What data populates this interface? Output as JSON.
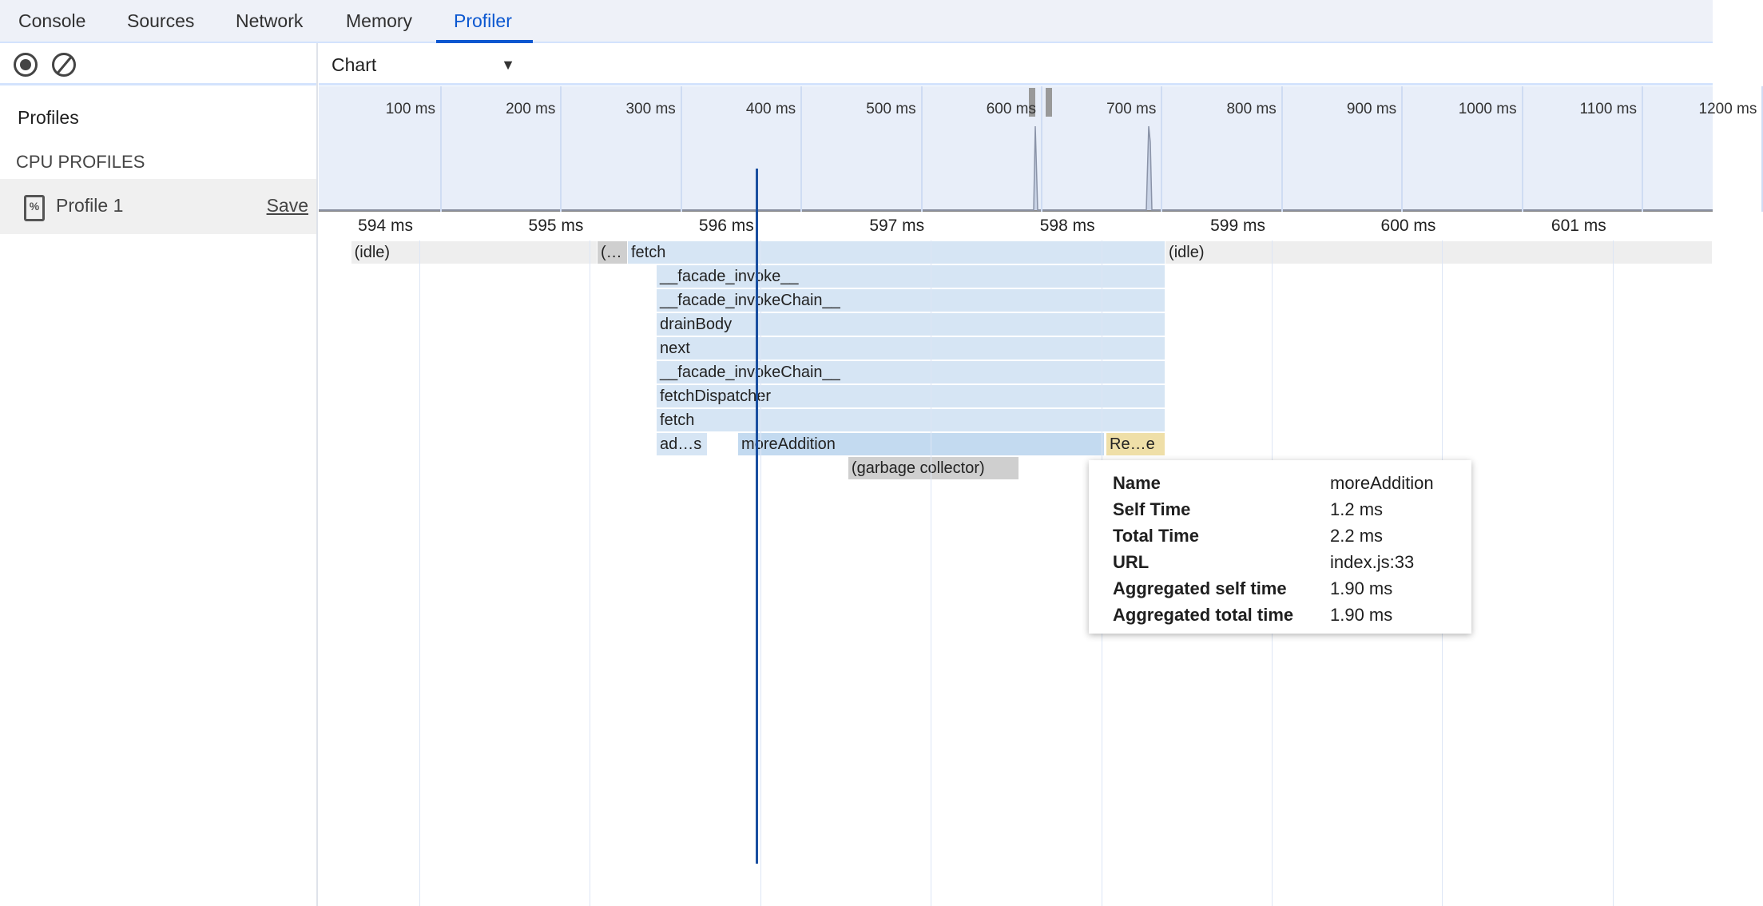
{
  "tabs": [
    {
      "label": "Console"
    },
    {
      "label": "Sources"
    },
    {
      "label": "Network"
    },
    {
      "label": "Memory"
    },
    {
      "label": "Profiler",
      "active": true
    }
  ],
  "sidebar": {
    "profiles_heading": "Profiles",
    "section": "CPU PROFILES",
    "profile": {
      "name": "Profile 1",
      "save_label": "Save",
      "icon": "cpu-profile-file-icon"
    }
  },
  "toolbar": {
    "record_icon": "record-icon",
    "clear_icon": "clear-icon",
    "view": "Chart"
  },
  "overview": {
    "ticks": [
      "100 ms",
      "200 ms",
      "300 ms",
      "400 ms",
      "500 ms",
      "600 ms",
      "700 ms",
      "800 ms",
      "900 ms",
      "1000 ms",
      "1100 ms",
      "1200 ms"
    ]
  },
  "ruler": {
    "ticks": [
      "594 ms",
      "595 ms",
      "596 ms",
      "597 ms",
      "598 ms",
      "599 ms",
      "600 ms",
      "601 ms"
    ]
  },
  "colors": {
    "js": "#d6e5f4",
    "selected": "#c3daf0",
    "gray": "#cfcfcf",
    "idle": "#eeeeee",
    "native": "#efdfa8",
    "cursor": "#1a4fa0",
    "accent": "#0b57d0"
  },
  "flame": [
    {
      "name": "(idle)",
      "row": 0,
      "start": 593.6,
      "end": 595.045,
      "kind": "idle"
    },
    {
      "name": "(…",
      "row": 0,
      "start": 595.045,
      "end": 595.223,
      "kind": "gray"
    },
    {
      "name": "fetch",
      "row": 0,
      "start": 595.223,
      "end": 598.377,
      "kind": "js"
    },
    {
      "name": "(idle)",
      "row": 0,
      "start": 598.377,
      "end": 601.8,
      "kind": "idle"
    },
    {
      "name": "__facade_invoke__",
      "row": 1,
      "start": 595.392,
      "end": 598.377,
      "kind": "js"
    },
    {
      "name": "__facade_invokeChain__",
      "row": 2,
      "start": 595.392,
      "end": 598.377,
      "kind": "js"
    },
    {
      "name": "drainBody",
      "row": 3,
      "start": 595.392,
      "end": 598.377,
      "kind": "js"
    },
    {
      "name": "next",
      "row": 4,
      "start": 595.392,
      "end": 598.377,
      "kind": "js"
    },
    {
      "name": "__facade_invokeChain__",
      "row": 5,
      "start": 595.392,
      "end": 598.377,
      "kind": "js"
    },
    {
      "name": "fetchDispatcher",
      "row": 6,
      "start": 595.392,
      "end": 598.377,
      "kind": "js"
    },
    {
      "name": "fetch",
      "row": 7,
      "start": 595.392,
      "end": 598.377,
      "kind": "js"
    },
    {
      "name": "ad…s",
      "row": 8,
      "start": 595.392,
      "end": 595.692,
      "kind": "js"
    },
    {
      "name": "moreAddition",
      "row": 8,
      "start": 595.87,
      "end": 598.021,
      "kind": "selected"
    },
    {
      "name": "Re…e",
      "row": 8,
      "start": 598.03,
      "end": 598.377,
      "kind": "native"
    },
    {
      "name": "(garbage collector)",
      "row": 9,
      "start": 596.516,
      "end": 597.519,
      "kind": "gray"
    }
  ],
  "tooltip": {
    "rows": [
      {
        "key": "Name",
        "value": "moreAddition"
      },
      {
        "key": "Self Time",
        "value": "1.2 ms"
      },
      {
        "key": "Total Time",
        "value": "2.2 ms"
      },
      {
        "key": "URL",
        "value": "index.js:33"
      },
      {
        "key": "Aggregated self time",
        "value": "1.90 ms"
      },
      {
        "key": "Aggregated total time",
        "value": "1.90 ms"
      }
    ]
  }
}
